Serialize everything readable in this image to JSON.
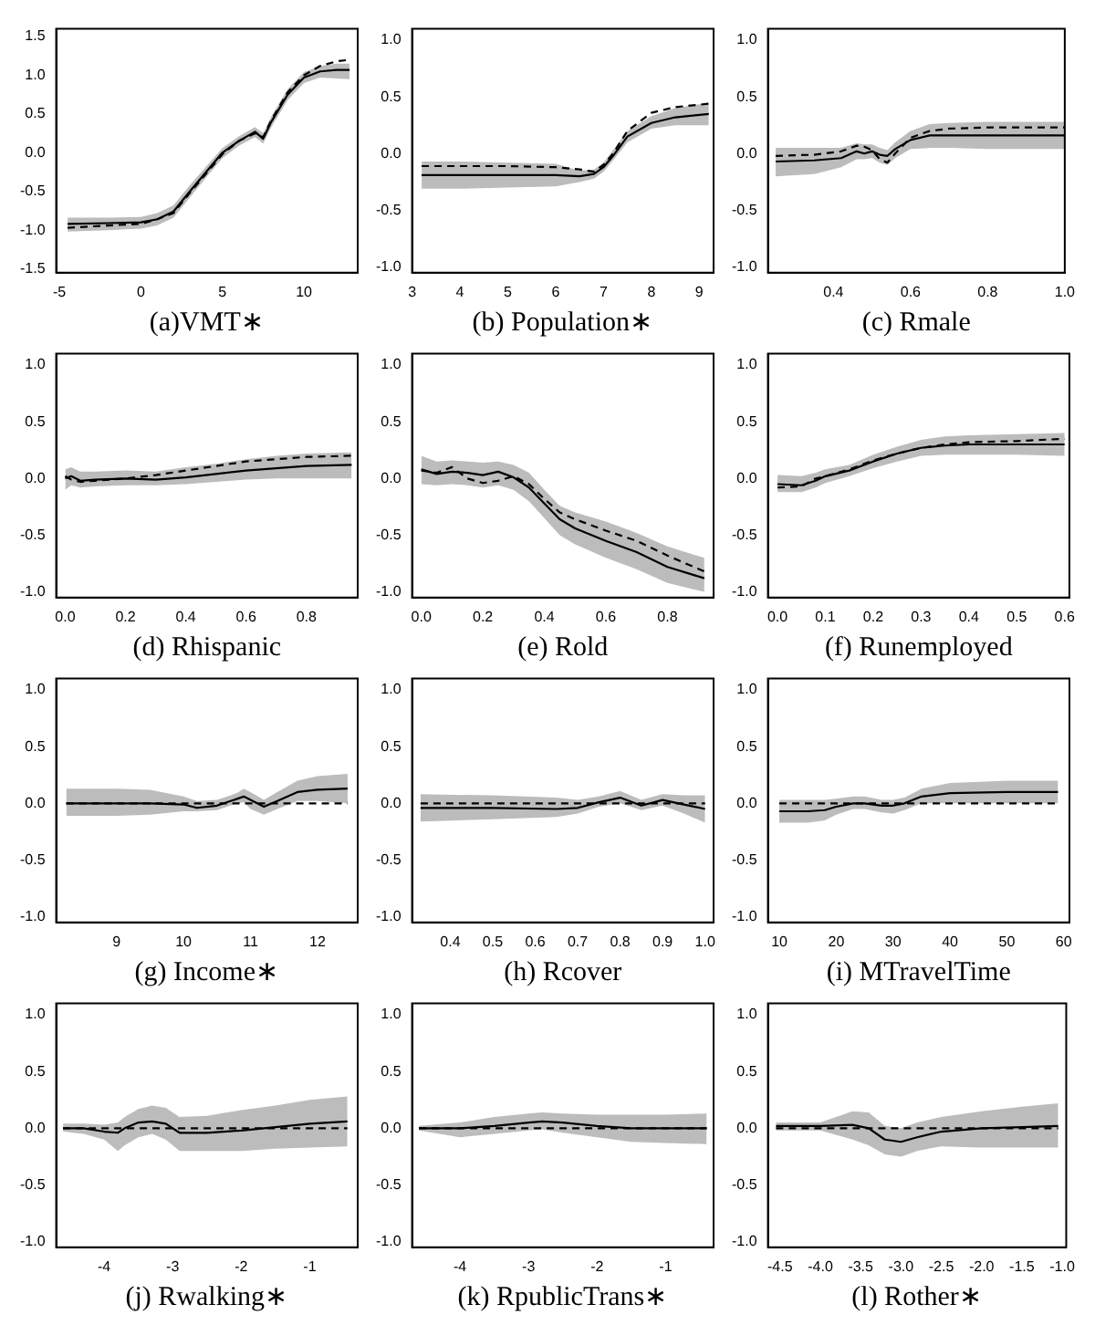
{
  "chart_data": [
    {
      "type": "line",
      "xlabel": "(a)VMT∗",
      "x": [
        -4.5,
        -2,
        0,
        1,
        2,
        3,
        4,
        5,
        6,
        7,
        7.5,
        8,
        9,
        10,
        11,
        12,
        12.8
      ],
      "xlim": [
        -5.2,
        13.3
      ],
      "xticks": [
        -5,
        0,
        5,
        10
      ],
      "ylim": [
        -1.55,
        1.6
      ],
      "yticks": [
        {
          "value": -1.5,
          "label": "-1.5"
        },
        {
          "value": -1,
          "label": "-1.0"
        },
        {
          "value": -0.5,
          "label": "-0.5"
        },
        {
          "value": 0,
          "label": "0.0"
        },
        {
          "value": 0.5,
          "label": "0.5"
        },
        {
          "value": 1,
          "label": "1.0"
        },
        {
          "value": 1.5,
          "label": "1.5"
        }
      ],
      "series": [
        {
          "color": "#000000",
          "line_style": "solid",
          "values": [
            -0.92,
            -0.91,
            -0.9,
            -0.86,
            -0.76,
            -0.5,
            -0.25,
            0,
            0.15,
            0.27,
            0.18,
            0.4,
            0.75,
            0.97,
            1.05,
            1.07,
            1.07
          ],
          "lower": [
            -1.02,
            -1.0,
            -0.98,
            -0.94,
            -0.84,
            -0.58,
            -0.32,
            -0.07,
            0.09,
            0.2,
            0.12,
            0.33,
            0.68,
            0.9,
            0.97,
            0.96,
            0.95
          ],
          "upper": [
            -0.84,
            -0.84,
            -0.83,
            -0.78,
            -0.68,
            -0.42,
            -0.18,
            0.06,
            0.21,
            0.33,
            0.25,
            0.47,
            0.82,
            1.04,
            1.12,
            1.15,
            1.15
          ]
        },
        {
          "color": "#000000",
          "line_style": "dashed",
          "values": [
            -0.97,
            -0.94,
            -0.92,
            -0.86,
            -0.78,
            -0.52,
            -0.27,
            -0.02,
            0.15,
            0.25,
            0.2,
            0.42,
            0.78,
            1.0,
            1.12,
            1.18,
            1.2
          ]
        }
      ]
    },
    {
      "type": "line",
      "xlabel": "(b) Population∗",
      "x": [
        3.2,
        4,
        5,
        6,
        6.5,
        6.8,
        7,
        7.2,
        7.5,
        8,
        8.5,
        9.2
      ],
      "xlim": [
        3,
        9.3
      ],
      "xticks": [
        3,
        4,
        5,
        6,
        7,
        8,
        9
      ],
      "ylim": [
        -1.05,
        1.1
      ],
      "yticks": [
        {
          "value": -1,
          "label": "-1.0"
        },
        {
          "value": -0.5,
          "label": "-0.5"
        },
        {
          "value": 0,
          "label": "0.0"
        },
        {
          "value": 0.5,
          "label": "0.5"
        },
        {
          "value": 1,
          "label": "1.0"
        }
      ],
      "series": [
        {
          "color": "#000000",
          "line_style": "solid",
          "values": [
            -0.19,
            -0.19,
            -0.19,
            -0.19,
            -0.2,
            -0.18,
            -0.12,
            -0.02,
            0.15,
            0.27,
            0.32,
            0.35
          ],
          "lower": [
            -0.31,
            -0.31,
            -0.3,
            -0.29,
            -0.25,
            -0.22,
            -0.16,
            -0.06,
            0.1,
            0.22,
            0.25,
            0.25
          ],
          "upper": [
            -0.07,
            -0.07,
            -0.08,
            -0.09,
            -0.15,
            -0.14,
            -0.08,
            0.03,
            0.2,
            0.33,
            0.4,
            0.45
          ]
        },
        {
          "color": "#000000",
          "line_style": "dashed",
          "values": [
            -0.11,
            -0.11,
            -0.11,
            -0.12,
            -0.14,
            -0.16,
            -0.1,
            0,
            0.2,
            0.36,
            0.41,
            0.44
          ]
        }
      ]
    },
    {
      "type": "line",
      "xlabel": "(c) Rmale",
      "x": [
        0.25,
        0.35,
        0.42,
        0.46,
        0.48,
        0.5,
        0.52,
        0.54,
        0.56,
        0.6,
        0.65,
        0.7,
        0.8,
        0.9,
        1.0
      ],
      "xlim": [
        0.23,
        1.0
      ],
      "xticks": [
        0.4,
        0.6,
        0.8,
        {
          "value": 1,
          "label": "1.0"
        }
      ],
      "ylim": [
        -1.05,
        1.1
      ],
      "yticks": [
        {
          "value": -1,
          "label": "-1.0"
        },
        {
          "value": -0.5,
          "label": "-0.5"
        },
        {
          "value": 0,
          "label": "0.0"
        },
        {
          "value": 0.5,
          "label": "0.5"
        },
        {
          "value": 1,
          "label": "1.0"
        }
      ],
      "series": [
        {
          "color": "#000000",
          "line_style": "solid",
          "values": [
            -0.07,
            -0.06,
            -0.04,
            0.02,
            0,
            0.02,
            -0.01,
            -0.02,
            0.04,
            0.12,
            0.16,
            0.16,
            0.16,
            0.16,
            0.16
          ],
          "lower": [
            -0.2,
            -0.18,
            -0.12,
            -0.05,
            -0.05,
            -0.04,
            -0.08,
            -0.1,
            -0.04,
            0.04,
            0.05,
            0.05,
            0.04,
            0.04,
            0.04
          ],
          "upper": [
            0.05,
            0.05,
            0.05,
            0.09,
            0.08,
            0.08,
            0.05,
            0.03,
            0.1,
            0.2,
            0.26,
            0.27,
            0.28,
            0.28,
            0.28
          ]
        },
        {
          "color": "#000000",
          "line_style": "dashed",
          "values": [
            -0.02,
            -0.01,
            0.02,
            0.07,
            0.06,
            0.03,
            -0.05,
            -0.08,
            0,
            0.14,
            0.2,
            0.22,
            0.23,
            0.23,
            0.23
          ]
        }
      ]
    },
    {
      "type": "line",
      "xlabel": "(d) Rhispanic",
      "x": [
        0,
        0.02,
        0.05,
        0.1,
        0.2,
        0.3,
        0.4,
        0.5,
        0.6,
        0.7,
        0.8,
        0.95
      ],
      "xlim": [
        -0.03,
        0.97
      ],
      "xticks": [
        {
          "value": 0,
          "label": "0.0"
        },
        0.2,
        0.4,
        0.6,
        0.8
      ],
      "ylim": [
        -1.05,
        1.1
      ],
      "yticks": [
        {
          "value": -1,
          "label": "-1.0"
        },
        {
          "value": -0.5,
          "label": "-0.5"
        },
        {
          "value": 0,
          "label": "0.0"
        },
        {
          "value": 0.5,
          "label": "0.5"
        },
        {
          "value": 1,
          "label": "1.0"
        }
      ],
      "series": [
        {
          "color": "#000000",
          "line_style": "solid",
          "values": [
            0,
            0.02,
            -0.02,
            -0.01,
            0,
            -0.01,
            0.01,
            0.04,
            0.07,
            0.09,
            0.11,
            0.12
          ],
          "lower": [
            -0.1,
            -0.06,
            -0.08,
            -0.07,
            -0.06,
            -0.06,
            -0.05,
            -0.03,
            -0.01,
            0,
            0,
            0
          ],
          "upper": [
            0.08,
            0.1,
            0.06,
            0.06,
            0.07,
            0.06,
            0.1,
            0.13,
            0.17,
            0.2,
            0.22,
            0.23
          ]
        },
        {
          "color": "#000000",
          "line_style": "dashed",
          "values": [
            0.02,
            -0.01,
            -0.03,
            -0.02,
            0,
            0.03,
            0.07,
            0.11,
            0.15,
            0.17,
            0.19,
            0.2
          ]
        }
      ]
    },
    {
      "type": "line",
      "xlabel": "(e) Rold",
      "x": [
        0,
        0.05,
        0.1,
        0.15,
        0.2,
        0.25,
        0.3,
        0.35,
        0.4,
        0.45,
        0.5,
        0.6,
        0.7,
        0.8,
        0.92
      ],
      "xlim": [
        -0.03,
        0.95
      ],
      "xticks": [
        {
          "value": 0,
          "label": "0.0"
        },
        0.2,
        0.4,
        0.6,
        0.8
      ],
      "ylim": [
        -1.05,
        1.1
      ],
      "yticks": [
        {
          "value": -1,
          "label": "-1.0"
        },
        {
          "value": -0.5,
          "label": "-0.5"
        },
        {
          "value": 0,
          "label": "0.0"
        },
        {
          "value": 0.5,
          "label": "0.5"
        },
        {
          "value": 1,
          "label": "1.0"
        }
      ],
      "series": [
        {
          "color": "#000000",
          "line_style": "solid",
          "values": [
            0.08,
            0.04,
            0.06,
            0.05,
            0.03,
            0.06,
            0.01,
            -0.08,
            -0.22,
            -0.36,
            -0.44,
            -0.55,
            -0.65,
            -0.78,
            -0.88
          ],
          "lower": [
            -0.05,
            -0.06,
            -0.05,
            -0.06,
            -0.08,
            -0.06,
            -0.1,
            -0.2,
            -0.35,
            -0.5,
            -0.58,
            -0.7,
            -0.8,
            -0.92,
            -1.0
          ],
          "upper": [
            0.2,
            0.15,
            0.16,
            0.15,
            0.14,
            0.15,
            0.12,
            0.05,
            -0.1,
            -0.24,
            -0.3,
            -0.38,
            -0.48,
            -0.6,
            -0.7
          ]
        },
        {
          "color": "#000000",
          "line_style": "dashed",
          "values": [
            0.07,
            0.05,
            0.1,
            0,
            -0.04,
            -0.02,
            0.02,
            -0.05,
            -0.18,
            -0.3,
            -0.36,
            -0.46,
            -0.55,
            -0.68,
            -0.82
          ]
        }
      ]
    },
    {
      "type": "line",
      "xlabel": "(f) Runemployed",
      "x": [
        0,
        0.05,
        0.08,
        0.1,
        0.15,
        0.2,
        0.25,
        0.3,
        0.35,
        0.4,
        0.5,
        0.6
      ],
      "xlim": [
        -0.02,
        0.61
      ],
      "xticks": [
        {
          "value": 0,
          "label": "0.0"
        },
        0.1,
        0.2,
        0.3,
        0.4,
        0.5,
        0.6
      ],
      "ylim": [
        -1.05,
        1.1
      ],
      "yticks": [
        {
          "value": -1,
          "label": "-1.0"
        },
        {
          "value": -0.5,
          "label": "-0.5"
        },
        {
          "value": 0,
          "label": "0.0"
        },
        {
          "value": 0.5,
          "label": "0.5"
        },
        {
          "value": 1,
          "label": "1.0"
        }
      ],
      "series": [
        {
          "color": "#000000",
          "line_style": "solid",
          "values": [
            -0.05,
            -0.06,
            -0.02,
            0.02,
            0.07,
            0.15,
            0.22,
            0.27,
            0.29,
            0.3,
            0.3,
            0.3
          ],
          "lower": [
            -0.12,
            -0.12,
            -0.08,
            -0.04,
            0.02,
            0.09,
            0.15,
            0.2,
            0.21,
            0.21,
            0.21,
            0.2
          ],
          "upper": [
            0.03,
            0.02,
            0.05,
            0.08,
            0.12,
            0.21,
            0.28,
            0.34,
            0.37,
            0.38,
            0.39,
            0.4
          ]
        },
        {
          "color": "#000000",
          "line_style": "dashed",
          "values": [
            -0.08,
            -0.07,
            0,
            0.02,
            0.08,
            0.16,
            0.22,
            0.27,
            0.3,
            0.32,
            0.33,
            0.35
          ]
        }
      ]
    },
    {
      "type": "line",
      "xlabel": "(g) Income∗",
      "x": [
        8.25,
        9,
        9.5,
        10,
        10.2,
        10.5,
        10.8,
        10.9,
        11,
        11.2,
        11.4,
        11.7,
        12,
        12.45
      ],
      "xlim": [
        8.1,
        12.6
      ],
      "xticks": [
        9,
        10,
        11,
        12
      ],
      "ylim": [
        -1.05,
        1.1
      ],
      "yticks": [
        {
          "value": -1,
          "label": "-1.0"
        },
        {
          "value": -0.5,
          "label": "-0.5"
        },
        {
          "value": 0,
          "label": "0.0"
        },
        {
          "value": 0.5,
          "label": "0.5"
        },
        {
          "value": 1,
          "label": "1.0"
        }
      ],
      "series": [
        {
          "color": "#000000",
          "line_style": "solid",
          "values": [
            0,
            0,
            0,
            -0.01,
            -0.04,
            -0.02,
            0.04,
            0.06,
            0.03,
            -0.03,
            0.02,
            0.1,
            0.12,
            0.13
          ],
          "lower": [
            -0.11,
            -0.11,
            -0.1,
            -0.07,
            -0.07,
            -0.06,
            0,
            0.01,
            -0.05,
            -0.1,
            -0.05,
            0.02,
            0.02,
            0.0
          ],
          "upper": [
            0.13,
            0.13,
            0.12,
            0.06,
            0.02,
            0.03,
            0.09,
            0.13,
            0.1,
            0.03,
            0.1,
            0.2,
            0.24,
            0.26
          ]
        },
        {
          "color": "#000000",
          "line_style": "dashed",
          "values": [
            0,
            0,
            0,
            0,
            0,
            0,
            0,
            0,
            0,
            0,
            0,
            0,
            0,
            0
          ]
        }
      ]
    },
    {
      "type": "line",
      "xlabel": "(h) Rcover",
      "x": [
        0.33,
        0.5,
        0.65,
        0.7,
        0.75,
        0.8,
        0.85,
        0.9,
        0.95,
        1.0
      ],
      "xlim": [
        0.31,
        1.02
      ],
      "xticks": [
        0.4,
        0.5,
        0.6,
        0.7,
        0.8,
        0.9,
        {
          "value": 1,
          "label": "1.0"
        }
      ],
      "ylim": [
        -1.05,
        1.1
      ],
      "yticks": [
        {
          "value": -1,
          "label": "-1.0"
        },
        {
          "value": -0.5,
          "label": "-0.5"
        },
        {
          "value": 0,
          "label": "0.0"
        },
        {
          "value": 0.5,
          "label": "0.5"
        },
        {
          "value": 1,
          "label": "1.0"
        }
      ],
      "series": [
        {
          "color": "#000000",
          "line_style": "solid",
          "values": [
            -0.04,
            -0.04,
            -0.05,
            -0.04,
            0.01,
            0.05,
            -0.02,
            0.03,
            -0.01,
            -0.05
          ],
          "lower": [
            -0.16,
            -0.14,
            -0.12,
            -0.09,
            -0.03,
            0.0,
            -0.06,
            -0.02,
            -0.09,
            -0.17
          ],
          "upper": [
            0.08,
            0.07,
            0.05,
            0.03,
            0.06,
            0.11,
            0.03,
            0.08,
            0.07,
            0.07
          ]
        },
        {
          "color": "#000000",
          "line_style": "dashed",
          "values": [
            0,
            0,
            0,
            0,
            0,
            0,
            0,
            0,
            0,
            0
          ]
        }
      ]
    },
    {
      "type": "line",
      "xlabel": "(i) MTravelTime",
      "x": [
        10,
        15,
        18,
        20,
        23,
        25,
        28,
        30,
        32,
        35,
        40,
        50,
        59
      ],
      "xlim": [
        8,
        61
      ],
      "xticks": [
        10,
        20,
        30,
        40,
        50,
        60
      ],
      "ylim": [
        -1.05,
        1.1
      ],
      "yticks": [
        {
          "value": -1,
          "label": "-1.0"
        },
        {
          "value": -0.5,
          "label": "-0.5"
        },
        {
          "value": 0,
          "label": "0.0"
        },
        {
          "value": 0.5,
          "label": "0.5"
        },
        {
          "value": 1,
          "label": "1.0"
        }
      ],
      "series": [
        {
          "color": "#000000",
          "line_style": "solid",
          "values": [
            -0.07,
            -0.07,
            -0.06,
            -0.03,
            0,
            0,
            -0.02,
            -0.02,
            0,
            0.06,
            0.09,
            0.1,
            0.1
          ],
          "lower": [
            -0.17,
            -0.17,
            -0.15,
            -0.1,
            -0.05,
            -0.05,
            -0.08,
            -0.09,
            -0.06,
            0,
            0,
            0,
            0
          ],
          "upper": [
            0.03,
            0.03,
            0.03,
            0.04,
            0.06,
            0.06,
            0.03,
            0.03,
            0.05,
            0.13,
            0.18,
            0.2,
            0.2
          ]
        },
        {
          "color": "#000000",
          "line_style": "dashed",
          "values": [
            0,
            0,
            0,
            0,
            0,
            0,
            0,
            0,
            0,
            0,
            0,
            0,
            0
          ]
        }
      ]
    },
    {
      "type": "line",
      "xlabel": "(j) Rwalking∗",
      "x": [
        -4.6,
        -4.3,
        -4.0,
        -3.8,
        -3.7,
        -3.5,
        -3.3,
        -3.1,
        -2.9,
        -2.5,
        -2,
        -1.5,
        -1,
        -0.45
      ],
      "xlim": [
        -4.7,
        -0.3
      ],
      "xticks": [
        -4,
        -3,
        -2,
        -1
      ],
      "ylim": [
        -1.05,
        1.1
      ],
      "yticks": [
        {
          "value": -1,
          "label": "-1.0"
        },
        {
          "value": -0.5,
          "label": "-0.5"
        },
        {
          "value": 0,
          "label": "0.0"
        },
        {
          "value": 0.5,
          "label": "0.5"
        },
        {
          "value": 1,
          "label": "1.0"
        }
      ],
      "series": [
        {
          "color": "#000000",
          "line_style": "solid",
          "values": [
            0,
            0,
            -0.03,
            -0.04,
            0,
            0.05,
            0.06,
            0.04,
            -0.04,
            -0.04,
            -0.02,
            0.01,
            0.04,
            0.06
          ],
          "lower": [
            -0.03,
            -0.05,
            -0.1,
            -0.2,
            -0.15,
            -0.08,
            -0.05,
            -0.1,
            -0.2,
            -0.2,
            -0.2,
            -0.18,
            -0.17,
            -0.16
          ],
          "upper": [
            0.04,
            0.04,
            0.03,
            0.05,
            0.1,
            0.17,
            0.2,
            0.18,
            0.1,
            0.11,
            0.16,
            0.2,
            0.25,
            0.28
          ]
        },
        {
          "color": "#000000",
          "line_style": "dashed",
          "values": [
            0,
            0,
            0,
            0,
            0,
            0,
            0,
            0,
            0,
            0,
            0,
            0,
            0,
            0
          ]
        }
      ]
    },
    {
      "type": "line",
      "xlabel": "(k) RpublicTrans∗",
      "x": [
        -4.6,
        -4,
        -3.5,
        -3,
        -2.8,
        -2.5,
        -2,
        -1.5,
        -1,
        -0.4
      ],
      "xlim": [
        -4.7,
        -0.3
      ],
      "xticks": [
        -4,
        -3,
        -2,
        -1
      ],
      "ylim": [
        -1.05,
        1.1
      ],
      "yticks": [
        {
          "value": -1,
          "label": "-1.0"
        },
        {
          "value": -0.5,
          "label": "-0.5"
        },
        {
          "value": 0,
          "label": "0.0"
        },
        {
          "value": 0.5,
          "label": "0.5"
        },
        {
          "value": 1,
          "label": "1.0"
        }
      ],
      "series": [
        {
          "color": "#000000",
          "line_style": "solid",
          "values": [
            0,
            0,
            0.02,
            0.05,
            0.06,
            0.05,
            0.02,
            0,
            0,
            0
          ],
          "lower": [
            -0.02,
            -0.08,
            -0.05,
            -0.02,
            -0.01,
            -0.04,
            -0.08,
            -0.12,
            -0.13,
            -0.14
          ],
          "upper": [
            0.02,
            0.05,
            0.1,
            0.13,
            0.14,
            0.13,
            0.12,
            0.12,
            0.12,
            0.13
          ]
        },
        {
          "color": "#000000",
          "line_style": "dashed",
          "values": [
            0,
            0,
            0,
            0,
            0,
            0,
            0,
            0,
            0,
            0
          ]
        }
      ]
    },
    {
      "type": "line",
      "xlabel": "(l) Rother∗",
      "x": [
        -4.55,
        -4,
        -3.6,
        -3.4,
        -3.2,
        -3.0,
        -2.8,
        -2.5,
        -2,
        -1.5,
        -1.05
      ],
      "xlim": [
        -4.65,
        -0.95
      ],
      "xticks": [
        -4.5,
        {
          "value": -4,
          "label": "-4.0"
        },
        -3.5,
        {
          "value": -3,
          "label": "-3.0"
        },
        -2.5,
        {
          "value": -2,
          "label": "-2.0"
        },
        -1.5,
        {
          "value": -1,
          "label": "-1.0"
        }
      ],
      "ylim": [
        -1.05,
        1.1
      ],
      "yticks": [
        {
          "value": -1,
          "label": "-1.0"
        },
        {
          "value": -0.5,
          "label": "-0.5"
        },
        {
          "value": 0,
          "label": "0.0"
        },
        {
          "value": 0.5,
          "label": "0.5"
        },
        {
          "value": 1,
          "label": "1.0"
        }
      ],
      "series": [
        {
          "color": "#000000",
          "line_style": "solid",
          "values": [
            0.02,
            0.02,
            0.03,
            0,
            -0.1,
            -0.12,
            -0.08,
            -0.03,
            0,
            0.01,
            0.02
          ],
          "lower": [
            -0.02,
            -0.02,
            -0.1,
            -0.15,
            -0.23,
            -0.25,
            -0.2,
            -0.16,
            -0.17,
            -0.17,
            -0.17
          ],
          "upper": [
            0.05,
            0.05,
            0.15,
            0.14,
            0.02,
            0,
            0.05,
            0.1,
            0.15,
            0.19,
            0.22
          ]
        },
        {
          "color": "#000000",
          "line_style": "dashed",
          "values": [
            0,
            0,
            0,
            0,
            0,
            0,
            0,
            0,
            0,
            0,
            0
          ]
        }
      ]
    }
  ]
}
